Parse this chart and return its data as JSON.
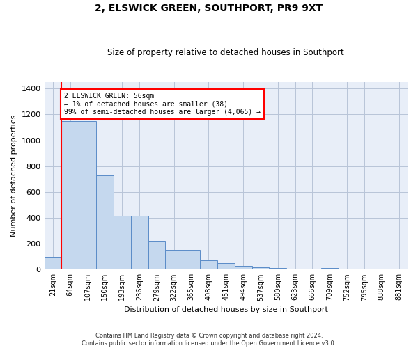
{
  "title": "2, ELSWICK GREEN, SOUTHPORT, PR9 9XT",
  "subtitle": "Size of property relative to detached houses in Southport",
  "xlabel": "Distribution of detached houses by size in Southport",
  "ylabel": "Number of detached properties",
  "bar_color": "#c5d8ee",
  "bar_edge_color": "#5b8cc8",
  "bg_color": "#e8eef8",
  "grid_color": "#b8c4d8",
  "categories": [
    "21sqm",
    "64sqm",
    "107sqm",
    "150sqm",
    "193sqm",
    "236sqm",
    "279sqm",
    "322sqm",
    "365sqm",
    "408sqm",
    "451sqm",
    "494sqm",
    "537sqm",
    "580sqm",
    "623sqm",
    "666sqm",
    "709sqm",
    "752sqm",
    "795sqm",
    "838sqm",
    "881sqm"
  ],
  "bar_values": [
    100,
    1150,
    1150,
    730,
    415,
    415,
    220,
    150,
    150,
    70,
    50,
    30,
    18,
    13,
    0,
    0,
    13,
    0,
    0,
    0,
    0
  ],
  "annotation_text": "2 ELSWICK GREEN: 56sqm\n← 1% of detached houses are smaller (38)\n99% of semi-detached houses are larger (4,065) →",
  "footnote": "Contains HM Land Registry data © Crown copyright and database right 2024.\nContains public sector information licensed under the Open Government Licence v3.0.",
  "ylim": [
    0,
    1450
  ],
  "yticks": [
    0,
    200,
    400,
    600,
    800,
    1000,
    1200,
    1400
  ],
  "red_line_x": 0.5
}
